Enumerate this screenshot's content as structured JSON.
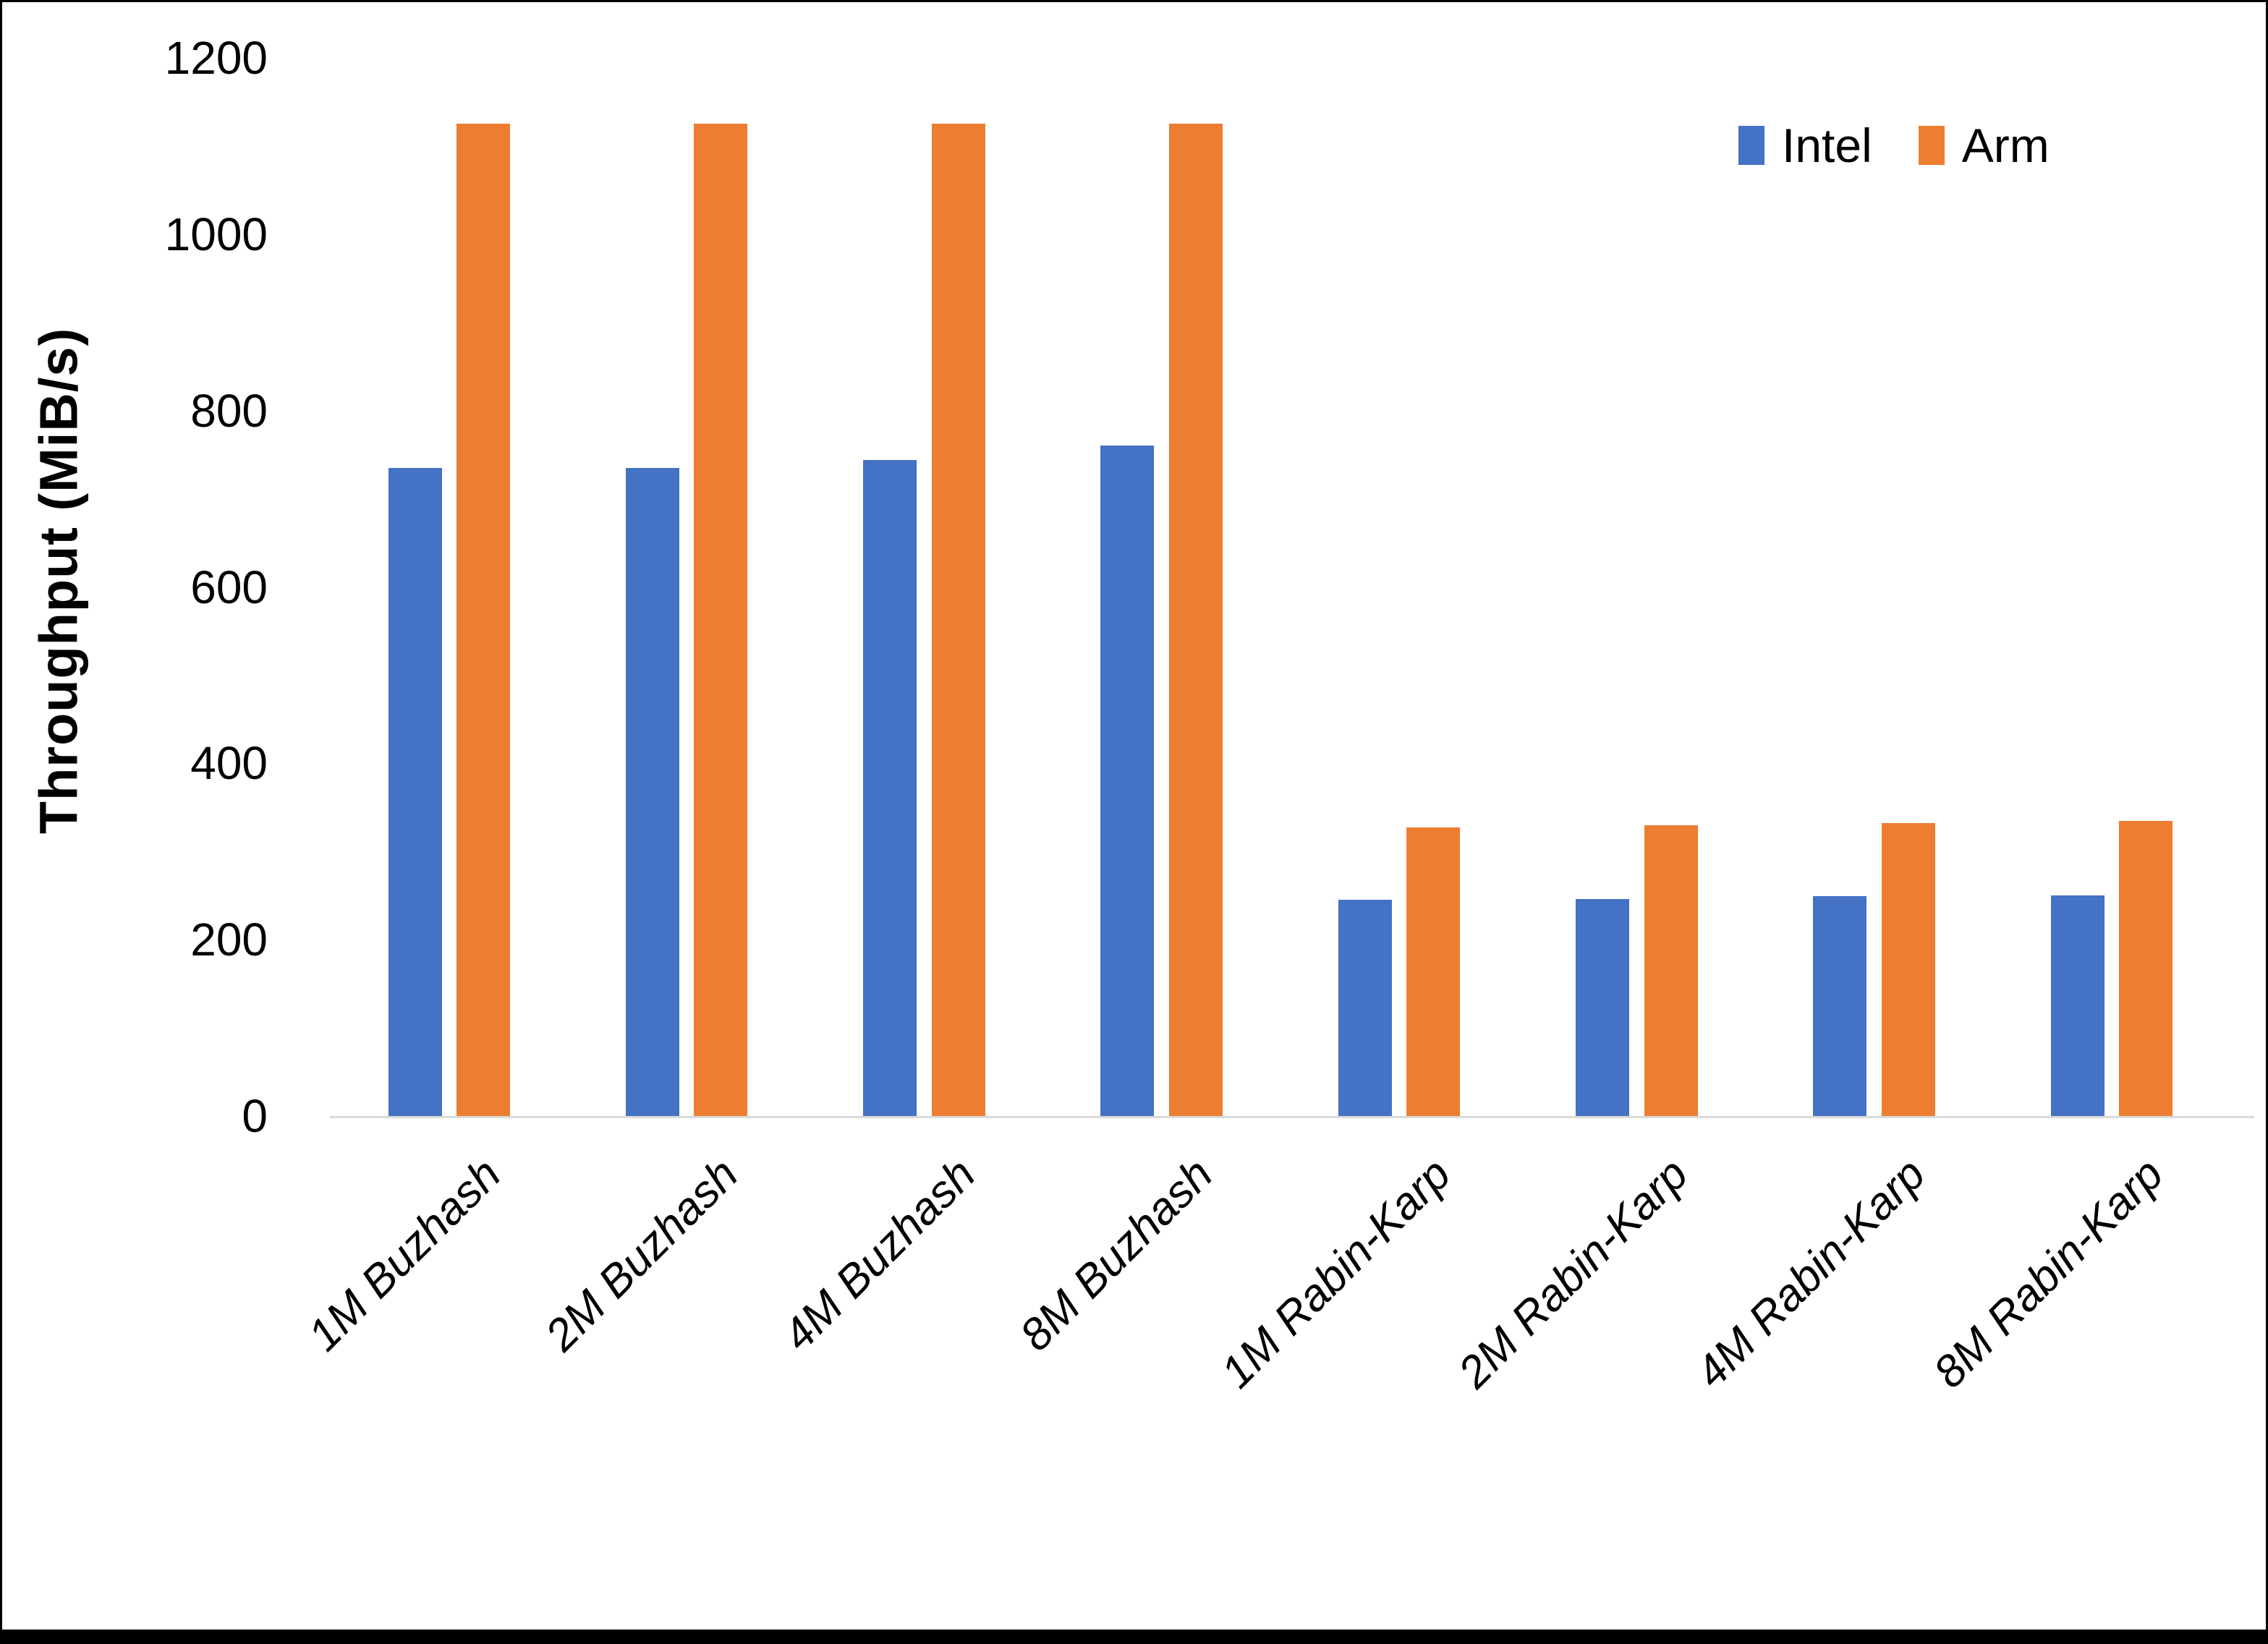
{
  "chart_data": {
    "type": "bar",
    "title": "",
    "categories": [
      "1M Buzhash",
      "2M Buzhash",
      "4M Buzhash",
      "8M Buzhash",
      "1M Rabin-Karp",
      "2M Rabin-Karp",
      "4M Rabin-Karp",
      "8M Rabin-Karp"
    ],
    "series": [
      {
        "name": "Intel",
        "color": "#4472C4",
        "values": [
          735,
          735,
          744,
          760,
          245,
          246,
          249,
          250
        ]
      },
      {
        "name": "Arm",
        "color": "#ED7D31",
        "values": [
          1125,
          1125,
          1125,
          1125,
          327,
          330,
          332,
          335
        ]
      }
    ],
    "xlabel": "",
    "ylabel": "Throughput (MiB/s)",
    "ylim": [
      0,
      1200
    ],
    "yticks": [
      0,
      200,
      400,
      600,
      800,
      1000,
      1200
    ],
    "grid": false,
    "legend_position": "top-right",
    "axis_line_color": "#D9D9D9",
    "background_color": "#FFFFFF",
    "frame_border_color": "#000000"
  }
}
